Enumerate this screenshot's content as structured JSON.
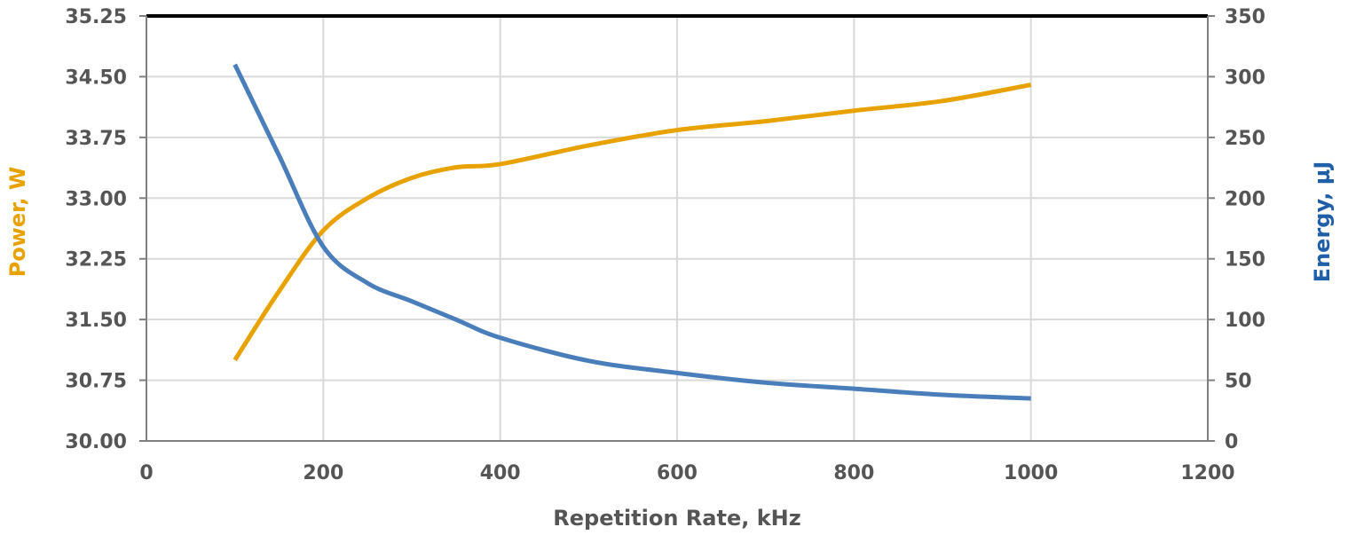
{
  "chart_data": {
    "type": "line",
    "title": "",
    "xlabel": "Repetition Rate, kHz",
    "ylabel_left": "Power, W",
    "ylabel_right": "Energy, µJ",
    "xlim": [
      0,
      1200
    ],
    "ylim_left": [
      30.0,
      35.25
    ],
    "ylim_right": [
      0,
      350
    ],
    "x_ticks": [
      "0",
      "200",
      "400",
      "600",
      "800",
      "1000",
      "1200"
    ],
    "y_left_ticks": [
      "30.00",
      "30.75",
      "31.50",
      "32.25",
      "33.00",
      "33.75",
      "34.50",
      "35.25"
    ],
    "y_right_ticks": [
      "0",
      "50",
      "100",
      "150",
      "200",
      "250",
      "300",
      "350"
    ],
    "grid": true,
    "colors": {
      "power": "#e8a200",
      "energy": "#4a7ebb",
      "power_label": "#e8a200",
      "energy_label": "#1f5fa8"
    },
    "series": [
      {
        "axis": "left",
        "color": "#e8a200",
        "x": [
          100,
          150,
          200,
          250,
          300,
          350,
          400,
          500,
          600,
          700,
          800,
          900,
          1000
        ],
        "values": [
          31.0,
          31.85,
          32.6,
          33.0,
          33.25,
          33.38,
          33.42,
          33.65,
          33.84,
          33.95,
          34.08,
          34.2,
          34.4
        ]
      },
      {
        "axis": "right",
        "color": "#4a7ebb",
        "x": [
          100,
          150,
          200,
          250,
          300,
          350,
          400,
          500,
          600,
          700,
          800,
          900,
          1000
        ],
        "values": [
          310,
          235,
          160,
          130,
          115,
          100,
          85,
          66,
          56,
          48,
          43,
          38,
          35
        ]
      }
    ]
  }
}
